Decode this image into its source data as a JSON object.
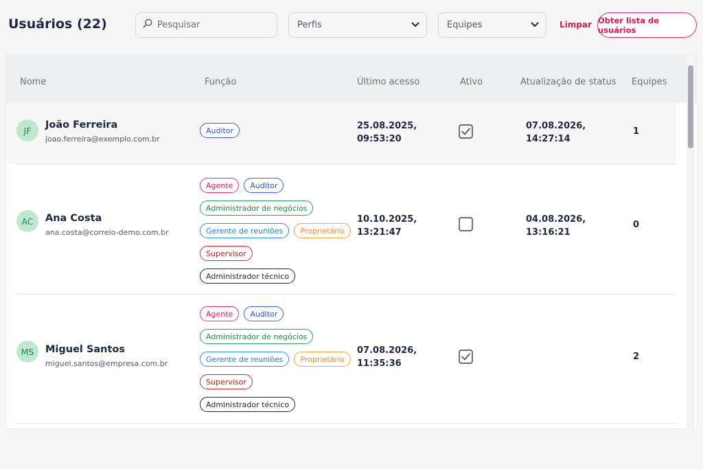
{
  "header": {
    "title": "Usuários (22)",
    "search_placeholder": "Pesquisar",
    "perfis_label": "Perfis",
    "equipes_label": "Equipes",
    "clear_label": "Limpar",
    "export_label": "Obter lista de usuários"
  },
  "table": {
    "columns": [
      "Nome",
      "Função",
      "Último acesso",
      "Ativo",
      "Atualização de status",
      "Equipes"
    ],
    "rows": [
      {
        "initials": "JF",
        "name": "João Ferreira",
        "email": "joao.ferreira@exemplo.com.br",
        "roles": [
          "Auditor"
        ],
        "last_access_date": "25.08.2025,",
        "last_access_time": "09:53:20",
        "active": true,
        "status_date": "07.08.2026,",
        "status_time": "14:27:14",
        "teams": "1"
      },
      {
        "initials": "AC",
        "name": "Ana Costa",
        "email": "ana.costa@correio-demo.com.br",
        "roles": [
          "Agente",
          "Auditor",
          "Administrador de negócios",
          "Gerente de reuniões",
          "Proprietário",
          "Supervisor",
          "Administrador técnico"
        ],
        "last_access_date": "10.10.2025,",
        "last_access_time": "13:21:47",
        "active": false,
        "status_date": "04.08.2026,",
        "status_time": "13:16:21",
        "teams": "0"
      },
      {
        "initials": "MS",
        "name": "Miguel Santos",
        "email": "miguel.santos@empresa.com.br",
        "roles": [
          "Agente",
          "Auditor",
          "Administrador de negócios",
          "Gerente de reuniões",
          "Proprietário",
          "Supervisor",
          "Administrador técnico"
        ],
        "last_access_date": "07.08.2026,",
        "last_access_time": "11:35:36",
        "active": true,
        "status_date": "",
        "status_time": "",
        "teams": "2"
      }
    ]
  },
  "colors": {
    "accent": "#d81b5a",
    "avatar_bg": "#bfe8d2",
    "header_bg": "#eeeff1"
  },
  "icons": {
    "search": "search-icon",
    "dropdown": "chevron-down-icon",
    "checked": "checkbox-checked-icon",
    "unchecked": "checkbox-unchecked-icon"
  }
}
